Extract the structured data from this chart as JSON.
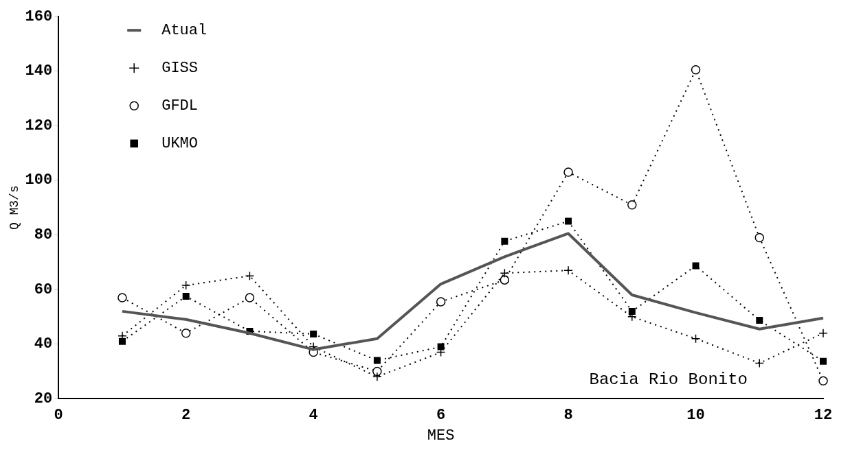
{
  "chart_data": {
    "type": "line",
    "xlabel": "MES",
    "ylabel": "Q M3/s",
    "annotations": [
      "Bacia Rio Bonito"
    ],
    "x": [
      1,
      2,
      3,
      4,
      5,
      6,
      7,
      8,
      9,
      10,
      11,
      12
    ],
    "xlim": [
      0,
      12
    ],
    "xticks": [
      0,
      2,
      4,
      6,
      8,
      10,
      12
    ],
    "ylim": [
      20,
      160
    ],
    "yticks": [
      20,
      40,
      60,
      80,
      100,
      120,
      140,
      160
    ],
    "grid": false,
    "legend": "top left",
    "series": [
      {
        "name": "Atual",
        "color": "#555555",
        "line_style": "solid",
        "marker": "none",
        "values": [
          52,
          49,
          44,
          38,
          42,
          62,
          72,
          80.5,
          58,
          51.5,
          45.5,
          49.5
        ]
      },
      {
        "name": "GISS",
        "color": "#000000",
        "line_style": "dotted",
        "marker": "cross",
        "values": [
          43,
          61.5,
          65,
          39,
          28,
          37,
          66,
          67,
          50,
          42,
          33,
          44
        ]
      },
      {
        "name": "GFDL",
        "color": "#000000",
        "line_style": "dotted",
        "marker": "circle",
        "values": [
          57,
          44,
          57,
          37,
          30,
          55.5,
          63.5,
          103,
          91,
          140.5,
          79,
          26.5
        ]
      },
      {
        "name": "UKMO",
        "color": "#000000",
        "line_style": "dotted",
        "marker": "square",
        "values": [
          41,
          57.5,
          44.7,
          43.7,
          34,
          39,
          77.7,
          85,
          52,
          68.7,
          48.7,
          33.7
        ]
      }
    ]
  }
}
